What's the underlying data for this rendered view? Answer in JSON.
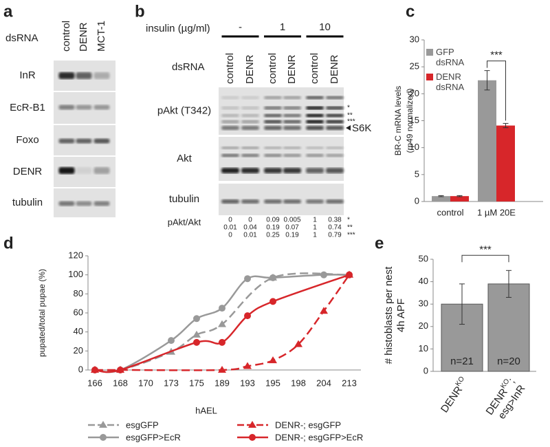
{
  "panel_a": {
    "label": "a",
    "row_label": "dsRNA",
    "lanes": [
      "control",
      "DENR",
      "MCT-1"
    ],
    "rows": [
      "InR",
      "EcR-B1",
      "Foxo",
      "DENR",
      "tubulin"
    ]
  },
  "panel_b": {
    "label": "b",
    "treatment": "insulin (µg/ml)",
    "doses": [
      "-",
      "1",
      "10"
    ],
    "row_label": "dsRNA",
    "lanes": [
      "control",
      "DENR",
      "control",
      "DENR",
      "control",
      "DENR"
    ],
    "rows": [
      "pAkt (T342)",
      "Akt",
      "tubulin"
    ],
    "band_marks": [
      "*",
      "**",
      "***"
    ],
    "band_arrow": "S6K",
    "ratio_label": "pAkt/Akt",
    "ratios": [
      [
        0,
        0,
        0.09,
        0.005,
        1,
        0.38
      ],
      [
        0.01,
        0.04,
        0.19,
        0.07,
        1,
        0.74
      ],
      [
        0,
        0.01,
        0.25,
        0.19,
        1,
        0.79
      ]
    ],
    "ratio_marks": [
      "*",
      "**",
      "***"
    ]
  },
  "chart_data": [
    {
      "type": "bar",
      "label": "c",
      "ylabel": [
        "BR-C mRNA levels",
        "(rp49 normalized)"
      ],
      "categories": [
        "control",
        "1 µM 20E"
      ],
      "series": [
        {
          "name": "GFP dsRNA",
          "color": "#999999",
          "values": [
            1,
            22.5
          ],
          "errors": [
            0.1,
            1.8
          ]
        },
        {
          "name": "DENR dsRNA",
          "color": "#d7262a",
          "values": [
            1,
            14.1
          ],
          "errors": [
            0.1,
            0.4
          ]
        }
      ],
      "ylim": [
        0,
        30
      ],
      "yticks": [
        0,
        5,
        10,
        15,
        20,
        25,
        30
      ],
      "annotation": "***",
      "legend": "upper left"
    },
    {
      "type": "line",
      "label": "d",
      "ylabel": "pupated/total pupae (%)",
      "xlabel": "hAEL",
      "categories": [
        "166",
        "168",
        "170",
        "173",
        "175",
        "189",
        "193",
        "195",
        "198",
        "204",
        "213"
      ],
      "series": [
        {
          "name": "esgGFP",
          "color": "#999999",
          "marker": "triangle",
          "dashed": true,
          "x": [
            "166",
            "168",
            "173",
            "175",
            "189",
            "195",
            "213"
          ],
          "values": [
            0,
            0,
            19,
            37,
            48,
            97,
            100
          ]
        },
        {
          "name": "esgGFP>EcR",
          "color": "#999999",
          "marker": "circle",
          "dashed": false,
          "x": [
            "166",
            "168",
            "173",
            "175",
            "189",
            "193",
            "195",
            "204",
            "213"
          ],
          "values": [
            0,
            0,
            31,
            54,
            65,
            96,
            97,
            100,
            100
          ]
        },
        {
          "name": "DENR-; esgGFP",
          "color": "#d7262a",
          "marker": "triangle",
          "dashed": true,
          "x": [
            "166",
            "168",
            "189",
            "193",
            "195",
            "198",
            "204",
            "213"
          ],
          "values": [
            0,
            0,
            0,
            4,
            10,
            27,
            62,
            100
          ]
        },
        {
          "name": "DENR-; esgGFP>EcR",
          "color": "#d7262a",
          "marker": "circle",
          "dashed": false,
          "x": [
            "166",
            "168",
            "175",
            "189",
            "193",
            "195",
            "213"
          ],
          "values": [
            0,
            0,
            29,
            29,
            57,
            72,
            100
          ]
        }
      ],
      "ylim": [
        0,
        120
      ],
      "yticks": [
        0,
        20,
        40,
        60,
        80,
        100,
        120
      ]
    },
    {
      "type": "bar",
      "label": "e",
      "ylabel": [
        "# histoblasts per nest",
        "4h APF"
      ],
      "categories": [
        {
          "text": "DENR",
          "sup": "KO"
        },
        {
          "text": "DENR",
          "sup": "KO",
          "suffix": ";",
          "line2": "esg>InR"
        }
      ],
      "values": [
        30,
        39
      ],
      "errors": [
        9,
        6
      ],
      "n_labels": [
        "n=21",
        "n=20"
      ],
      "color": "#999999",
      "ylim": [
        0,
        50
      ],
      "yticks": [
        0,
        10,
        20,
        30,
        40,
        50
      ],
      "annotation": "***"
    }
  ]
}
